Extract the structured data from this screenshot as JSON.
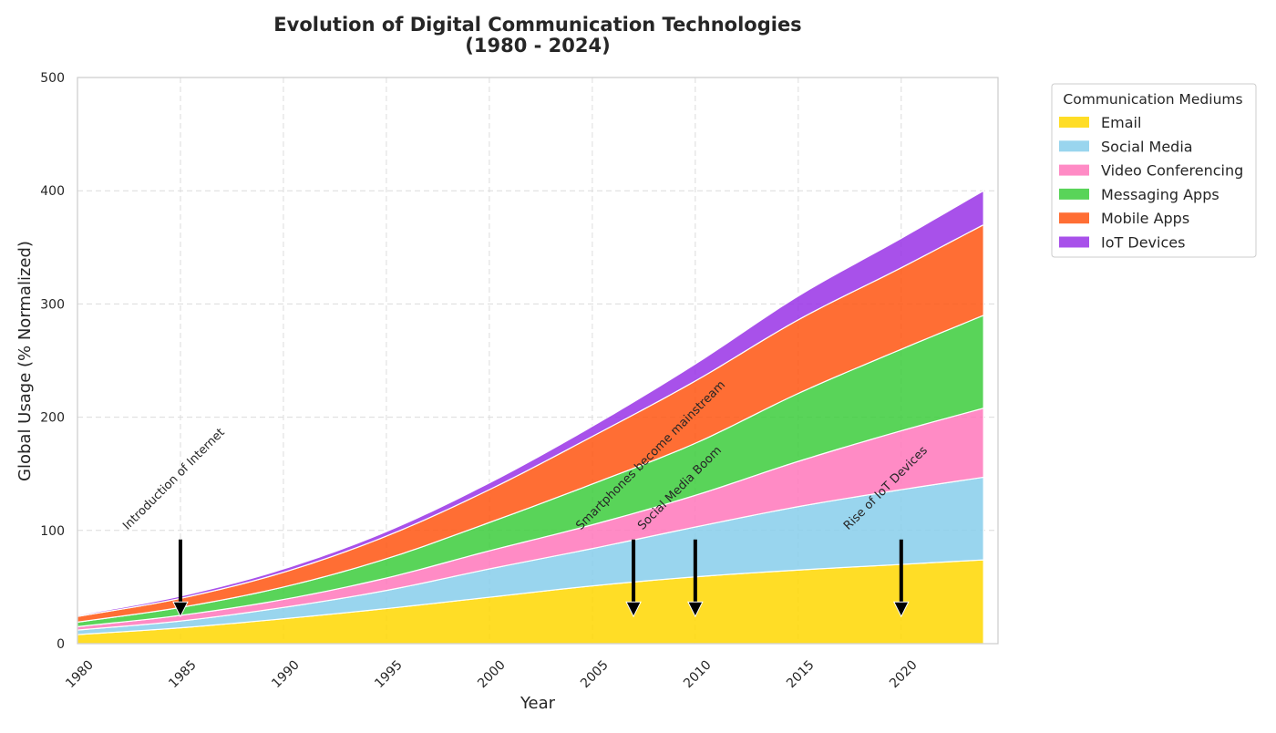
{
  "chart_data": {
    "type": "area",
    "title_line1": "Evolution of Digital Communication Technologies",
    "title_line2": "(1980 - 2024)",
    "xlabel": "Year",
    "ylabel": "Global Usage (% Normalized)",
    "xlim": [
      1980,
      2024.7
    ],
    "ylim": [
      0,
      500
    ],
    "x_ticks": [
      1980,
      1985,
      1990,
      1995,
      2000,
      2005,
      2010,
      2015,
      2020
    ],
    "y_ticks": [
      0,
      100,
      200,
      300,
      400,
      500
    ],
    "grid": true,
    "stacked": true,
    "legend_position": "outside-top-right",
    "legend_title": "Communication Mediums",
    "x": [
      1980,
      1985,
      1990,
      1995,
      2000,
      2005,
      2010,
      2015,
      2020,
      2024
    ],
    "series": [
      {
        "name": "Email",
        "color": "#FFD700",
        "values": [
          8,
          14,
          22,
          31,
          41,
          51,
          59,
          65,
          70,
          74
        ]
      },
      {
        "name": "Social Media",
        "color": "#87CEEB",
        "values": [
          4,
          6,
          10,
          16,
          25,
          33,
          44,
          56,
          66,
          73
        ]
      },
      {
        "name": "Video Conferencing",
        "color": "#FF77BB",
        "values": [
          3,
          5,
          7,
          11,
          16,
          21,
          28,
          40,
          52,
          61
        ]
      },
      {
        "name": "Messaging Apps",
        "color": "#3CCC3C",
        "values": [
          4,
          7,
          11,
          17,
          25,
          36,
          46,
          60,
          72,
          82
        ]
      },
      {
        "name": "Mobile Apps",
        "color": "#FF5511",
        "values": [
          5,
          8,
          13,
          20,
          29,
          42,
          55,
          65,
          72,
          80
        ]
      },
      {
        "name": "IoT Devices",
        "color": "#9933E6",
        "values": [
          1,
          2,
          3,
          4,
          6,
          9,
          15,
          21,
          26,
          30
        ]
      }
    ],
    "annotations": [
      {
        "text": "Introduction of Internet",
        "x": 1985
      },
      {
        "text": "Smartphones become mainstream",
        "x": 2007
      },
      {
        "text": "Social Media Boom",
        "x": 2010
      },
      {
        "text": "Rise of IoT Devices",
        "x": 2020
      }
    ]
  }
}
